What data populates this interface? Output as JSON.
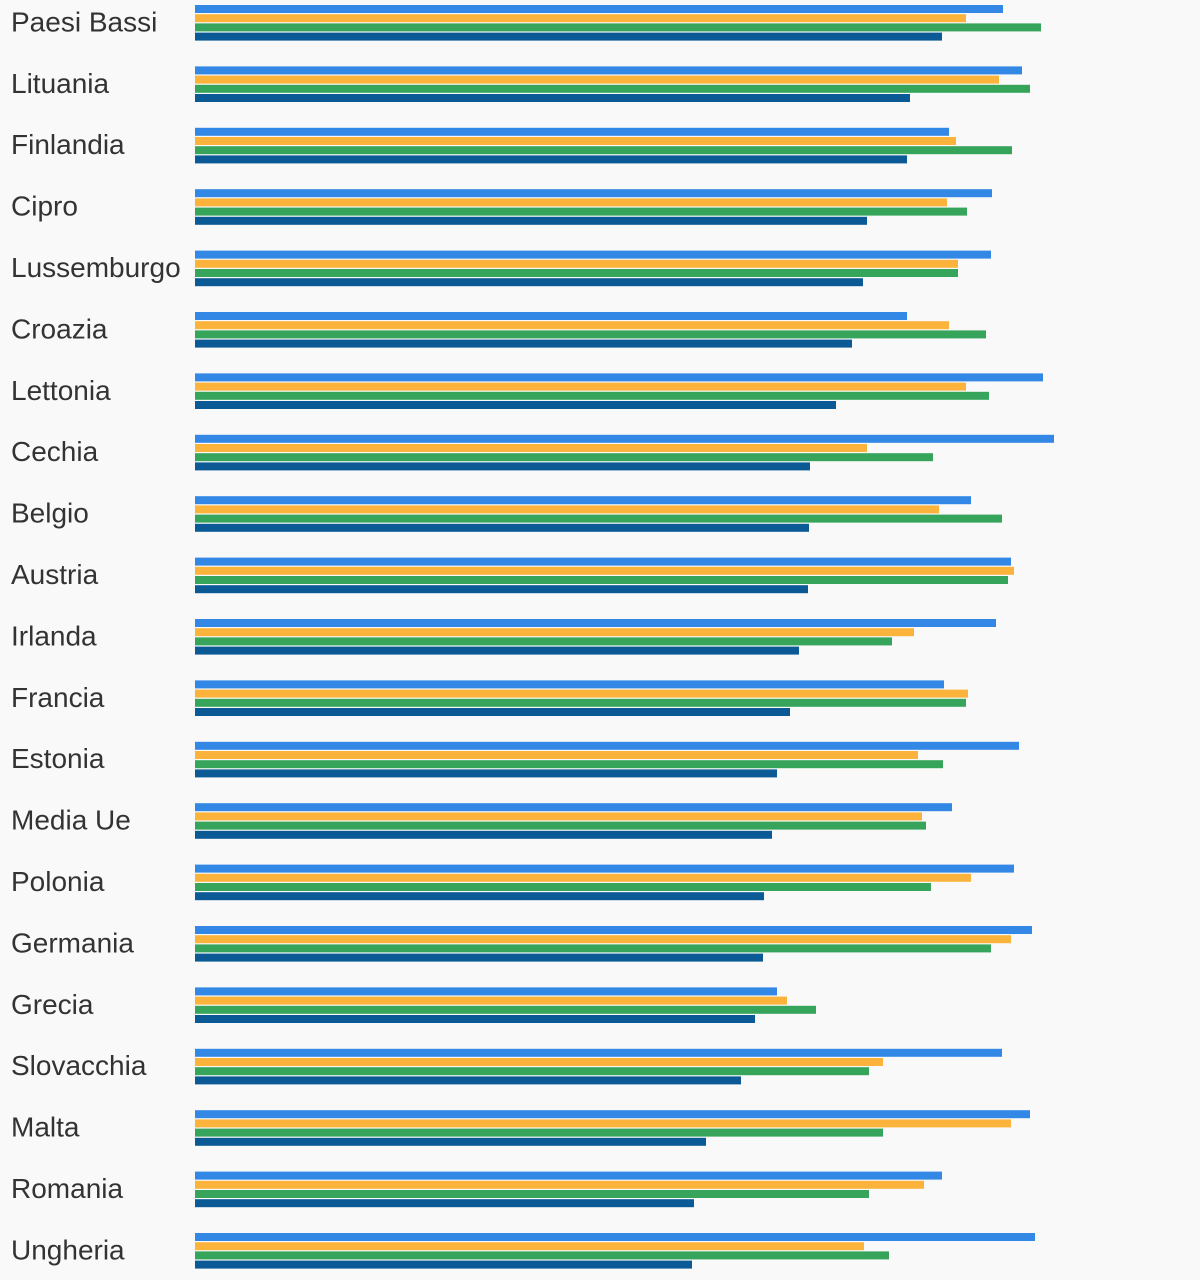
{
  "chart_data": {
    "type": "bar",
    "orientation": "horizontal",
    "categories": [
      "Paesi Bassi",
      "Lituania",
      "Finlandia",
      "Cipro",
      "Lussemburgo",
      "Croazia",
      "Lettonia",
      "Cechia",
      "Belgio",
      "Austria",
      "Irlanda",
      "Francia",
      "Estonia",
      "Media Ue",
      "Polonia",
      "Germania",
      "Grecia",
      "Slovacchia",
      "Malta",
      "Romania",
      "Ungheria"
    ],
    "series": [
      {
        "color": "#3388e6",
        "values": [
          808,
          827,
          754,
          797,
          796,
          712,
          848,
          859,
          776,
          816,
          801,
          749,
          824,
          757,
          819,
          837,
          582,
          807,
          835,
          747,
          840
        ]
      },
      {
        "color": "#fbb33b",
        "values": [
          771,
          804,
          761,
          752,
          763,
          754,
          771,
          672,
          744,
          819,
          719,
          773,
          723,
          727,
          776,
          816,
          592,
          688,
          816,
          729,
          669
        ]
      },
      {
        "color": "#36a45a",
        "values": [
          846,
          835,
          817,
          772,
          763,
          791,
          794,
          738,
          807,
          813,
          697,
          771,
          748,
          731,
          736,
          796,
          621,
          674,
          688,
          674,
          694
        ]
      },
      {
        "color": "#0b5a96",
        "values": [
          747,
          715,
          712,
          672,
          668,
          657,
          641,
          615,
          614,
          613,
          604,
          595,
          582,
          577,
          569,
          568,
          560,
          546,
          511,
          499,
          497
        ]
      }
    ],
    "xlim": [
      0,
      1000
    ],
    "grid": false,
    "legend": "none"
  }
}
